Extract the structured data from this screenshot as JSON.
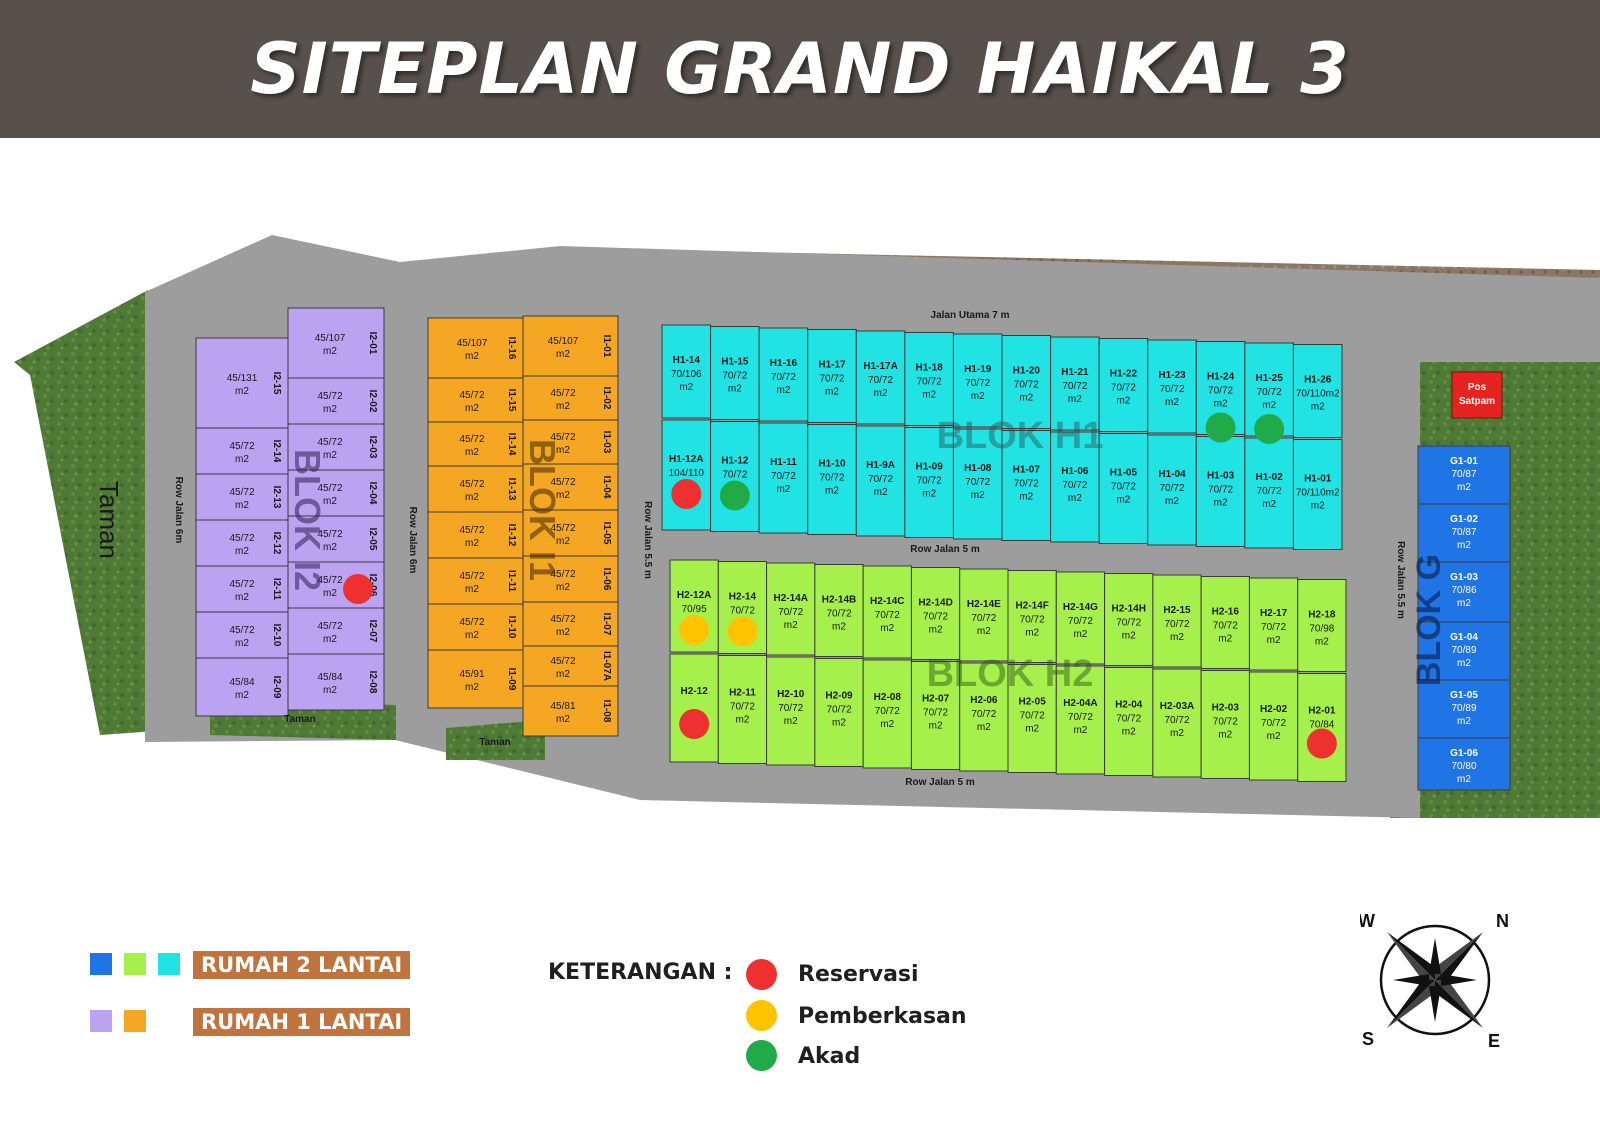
{
  "title": "SITEPLAN GRAND HAIKAL 3",
  "colors": {
    "header_bg": "#57504c",
    "grass": "#4f7a36",
    "road": "#9d9d9d",
    "dirt": "#8a7865",
    "blok_h1": "#22e3e3",
    "blok_h2": "#a5f04a",
    "blok_g": "#1f74e6",
    "blok_i1": "#f5a623",
    "blok_i2": "#bba3f2",
    "reservasi": "#ee3030",
    "pemberkasan": "#ffc300",
    "akad": "#21aa48",
    "legend_bar": "#c0733c"
  },
  "roads": {
    "jalan_utama": "Jalan Utama 7 m",
    "row_h1_h2": "Row Jalan 5 m",
    "row_bottom": "Row Jalan 5 m",
    "row_i1_h": "Row Jalan 5.5 m",
    "row_i2_i1": "Row Jalan 6m",
    "row_left": "Row Jalan 6m",
    "row_g": "Row Jalan 5.5 m"
  },
  "labels": {
    "taman_big": "Taman",
    "taman_small": "Taman",
    "pos_satpam": [
      "Pos",
      "Satpam"
    ]
  },
  "blocks": [
    {
      "name": "BLOK H1",
      "color": "blok_h1"
    },
    {
      "name": "BLOK H2",
      "color": "blok_h2"
    },
    {
      "name": "BLOK I1",
      "color": "blok_i1"
    },
    {
      "name": "BLOK I2",
      "color": "blok_i2"
    },
    {
      "name": "BLOK G",
      "color": "blok_g"
    }
  ],
  "lots": {
    "h1_top": [
      {
        "id": "H1-14",
        "size": "70/106"
      },
      {
        "id": "H1-15",
        "size": "70/72"
      },
      {
        "id": "H1-16",
        "size": "70/72"
      },
      {
        "id": "H1-17",
        "size": "70/72"
      },
      {
        "id": "H1-17A",
        "size": "70/72"
      },
      {
        "id": "H1-18",
        "size": "70/72"
      },
      {
        "id": "H1-19",
        "size": "70/72"
      },
      {
        "id": "H1-20",
        "size": "70/72"
      },
      {
        "id": "H1-21",
        "size": "70/72"
      },
      {
        "id": "H1-22",
        "size": "70/72"
      },
      {
        "id": "H1-23",
        "size": "70/72"
      },
      {
        "id": "H1-24",
        "size": "70/72",
        "status": "akad"
      },
      {
        "id": "H1-25",
        "size": "70/72",
        "status": "akad"
      },
      {
        "id": "H1-26",
        "size": "70/110m2"
      }
    ],
    "h1_bottom": [
      {
        "id": "H1-12A",
        "size": "104/110",
        "status": "reservasi"
      },
      {
        "id": "H1-12",
        "size": "70/72",
        "status": "akad"
      },
      {
        "id": "H1-11",
        "size": "70/72"
      },
      {
        "id": "H1-10",
        "size": "70/72"
      },
      {
        "id": "H1-9A",
        "size": "70/72"
      },
      {
        "id": "H1-09",
        "size": "70/72"
      },
      {
        "id": "H1-08",
        "size": "70/72"
      },
      {
        "id": "H1-07",
        "size": "70/72"
      },
      {
        "id": "H1-06",
        "size": "70/72"
      },
      {
        "id": "H1-05",
        "size": "70/72"
      },
      {
        "id": "H1-04",
        "size": "70/72"
      },
      {
        "id": "H1-03",
        "size": "70/72"
      },
      {
        "id": "H1-02",
        "size": "70/72"
      },
      {
        "id": "H1-01",
        "size": "70/110m2"
      }
    ],
    "h2_top": [
      {
        "id": "H2-12A",
        "size": "70/95",
        "status": "pemberkasan"
      },
      {
        "id": "H2-14",
        "size": "70/72",
        "status": "pemberkasan"
      },
      {
        "id": "H2-14A",
        "size": "70/72"
      },
      {
        "id": "H2-14B",
        "size": "70/72"
      },
      {
        "id": "H2-14C",
        "size": "70/72"
      },
      {
        "id": "H2-14D",
        "size": "70/72"
      },
      {
        "id": "H2-14E",
        "size": "70/72"
      },
      {
        "id": "H2-14F",
        "size": "70/72"
      },
      {
        "id": "H2-14G",
        "size": "70/72"
      },
      {
        "id": "H2-14H",
        "size": "70/72"
      },
      {
        "id": "H2-15",
        "size": "70/72"
      },
      {
        "id": "H2-16",
        "size": "70/72"
      },
      {
        "id": "H2-17",
        "size": "70/72"
      },
      {
        "id": "H2-18",
        "size": "70/98"
      }
    ],
    "h2_bottom": [
      {
        "id": "H2-12",
        "size": "",
        "status": "reservasi"
      },
      {
        "id": "H2-11",
        "size": "70/72"
      },
      {
        "id": "H2-10",
        "size": "70/72"
      },
      {
        "id": "H2-09",
        "size": "70/72"
      },
      {
        "id": "H2-08",
        "size": "70/72"
      },
      {
        "id": "H2-07",
        "size": "70/72"
      },
      {
        "id": "H2-06",
        "size": "70/72"
      },
      {
        "id": "H2-05",
        "size": "70/72"
      },
      {
        "id": "H2-04A",
        "size": "70/72"
      },
      {
        "id": "H2-04",
        "size": "70/72"
      },
      {
        "id": "H2-03A",
        "size": "70/72"
      },
      {
        "id": "H2-03",
        "size": "70/72"
      },
      {
        "id": "H2-02",
        "size": "70/72"
      },
      {
        "id": "H2-01",
        "size": "70/84",
        "status": "reservasi"
      }
    ],
    "i1_left": [
      {
        "id": "I1-16",
        "size": "45/107"
      },
      {
        "id": "I1-15",
        "size": "45/72"
      },
      {
        "id": "I1-14",
        "size": "45/72"
      },
      {
        "id": "I1-13",
        "size": "45/72"
      },
      {
        "id": "I1-12",
        "size": "45/72"
      },
      {
        "id": "I1-11",
        "size": "45/72"
      },
      {
        "id": "I1-10",
        "size": "45/72"
      },
      {
        "id": "I1-09",
        "size": "45/91"
      }
    ],
    "i1_right": [
      {
        "id": "I1-01",
        "size": "45/107"
      },
      {
        "id": "I1-02",
        "size": "45/72"
      },
      {
        "id": "I1-03",
        "size": "45/72"
      },
      {
        "id": "I1-04",
        "size": "45/72"
      },
      {
        "id": "I1-05",
        "size": "45/72"
      },
      {
        "id": "I1-06",
        "size": "45/72"
      },
      {
        "id": "I1-07",
        "size": "45/72"
      },
      {
        "id": "I1-07A",
        "size": "45/72"
      },
      {
        "id": "I1-08",
        "size": "45/81"
      }
    ],
    "i2_left": [
      {
        "id": "I2-15",
        "size": "45/131"
      },
      {
        "id": "I2-14",
        "size": "45/72"
      },
      {
        "id": "I2-13",
        "size": "45/72"
      },
      {
        "id": "I2-12",
        "size": "45/72"
      },
      {
        "id": "I2-11",
        "size": "45/72"
      },
      {
        "id": "I2-10",
        "size": "45/72"
      },
      {
        "id": "I2-09",
        "size": "45/84"
      }
    ],
    "i2_right": [
      {
        "id": "I2-01",
        "size": "45/107"
      },
      {
        "id": "I2-02",
        "size": "45/72"
      },
      {
        "id": "I2-03",
        "size": "45/72"
      },
      {
        "id": "I2-04",
        "size": "45/72"
      },
      {
        "id": "I2-05",
        "size": "45/72"
      },
      {
        "id": "I2-06",
        "size": "45/72",
        "status": "reservasi"
      },
      {
        "id": "I2-07",
        "size": "45/72"
      },
      {
        "id": "I2-08",
        "size": "45/84"
      }
    ],
    "g": [
      {
        "id": "G1-01",
        "size": "70/87"
      },
      {
        "id": "G1-02",
        "size": "70/87"
      },
      {
        "id": "G1-03",
        "size": "70/86"
      },
      {
        "id": "G1-04",
        "size": "70/89"
      },
      {
        "id": "G1-05",
        "size": "70/89"
      },
      {
        "id": "G1-06",
        "size": "70/80"
      }
    ]
  },
  "unit": "m2",
  "legend": {
    "rumah_2_lantai": "RUMAH 2 LANTAI",
    "rumah_1_lantai": "RUMAH 1 LANTAI",
    "keterangan": "KETERANGAN :",
    "reservasi": "Reservasi",
    "pemberkasan": "Pemberkasan",
    "akad": "Akad"
  },
  "compass": {
    "n": "N",
    "e": "E",
    "s": "S",
    "w": "W"
  }
}
